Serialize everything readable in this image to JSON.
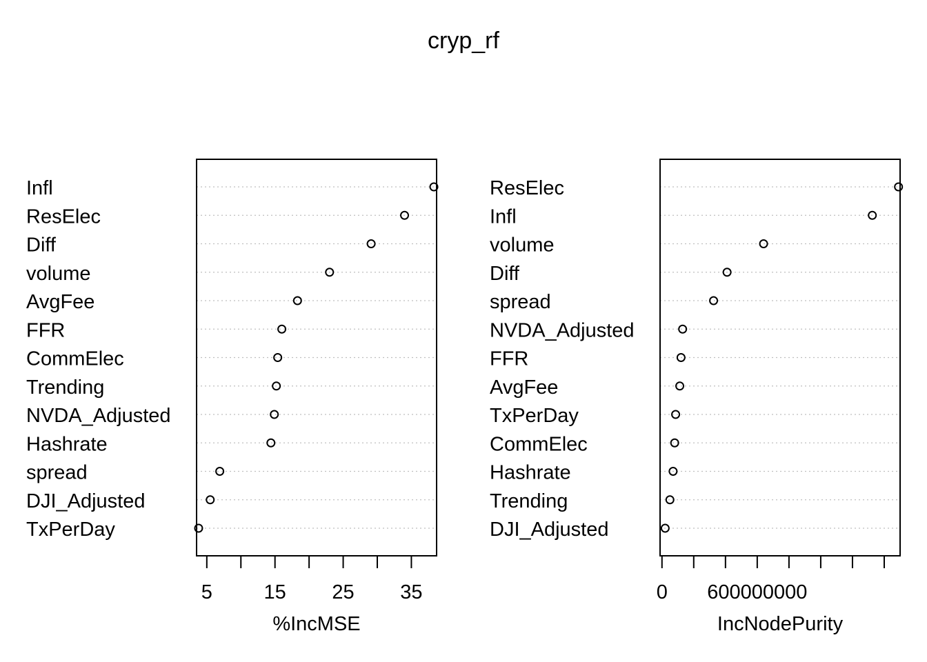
{
  "title": "cryp_rf",
  "chart_data": [
    {
      "type": "scatter",
      "subtype": "dotchart",
      "title": "",
      "xlabel": "%IncMSE",
      "ylabel": "",
      "xlim": [
        3.5,
        38.7
      ],
      "ticks": [
        5,
        10,
        15,
        20,
        25,
        30,
        35
      ],
      "tick_labels": [
        "5",
        "",
        "15",
        "",
        "25",
        "",
        "35"
      ],
      "grid": "dotted horizontal",
      "categories": [
        "Infl",
        "ResElec",
        "Diff",
        "volume",
        "AvgFee",
        "FFR",
        "CommElec",
        "Trending",
        "NVDA_Adjusted",
        "Hashrate",
        "spread",
        "DJI_Adjusted",
        "TxPerDay"
      ],
      "values": [
        38.3,
        34.0,
        29.1,
        23.0,
        18.3,
        16.0,
        15.4,
        15.2,
        14.9,
        14.4,
        6.9,
        5.5,
        3.8
      ]
    },
    {
      "type": "scatter",
      "subtype": "dotchart",
      "title": "",
      "xlabel": "IncNodePurity",
      "ylabel": "",
      "xlim": [
        -12000000,
        1500000000
      ],
      "ticks": [
        0,
        200000000,
        400000000,
        600000000,
        800000000,
        1000000000,
        1200000000,
        1400000000
      ],
      "tick_labels": [
        "0",
        "",
        "",
        "600000000",
        "",
        "",
        "",
        ""
      ],
      "grid": "dotted horizontal",
      "categories": [
        "ResElec",
        "Infl",
        "volume",
        "Diff",
        "spread",
        "NVDA_Adjusted",
        "FFR",
        "AvgFee",
        "TxPerDay",
        "CommElec",
        "Hashrate",
        "Trending",
        "DJI_Adjusted"
      ],
      "values": [
        1490000000,
        1325000000,
        640000000,
        410000000,
        325000000,
        130000000,
        120000000,
        112000000,
        86000000,
        80000000,
        70000000,
        50000000,
        20000000
      ]
    }
  ]
}
